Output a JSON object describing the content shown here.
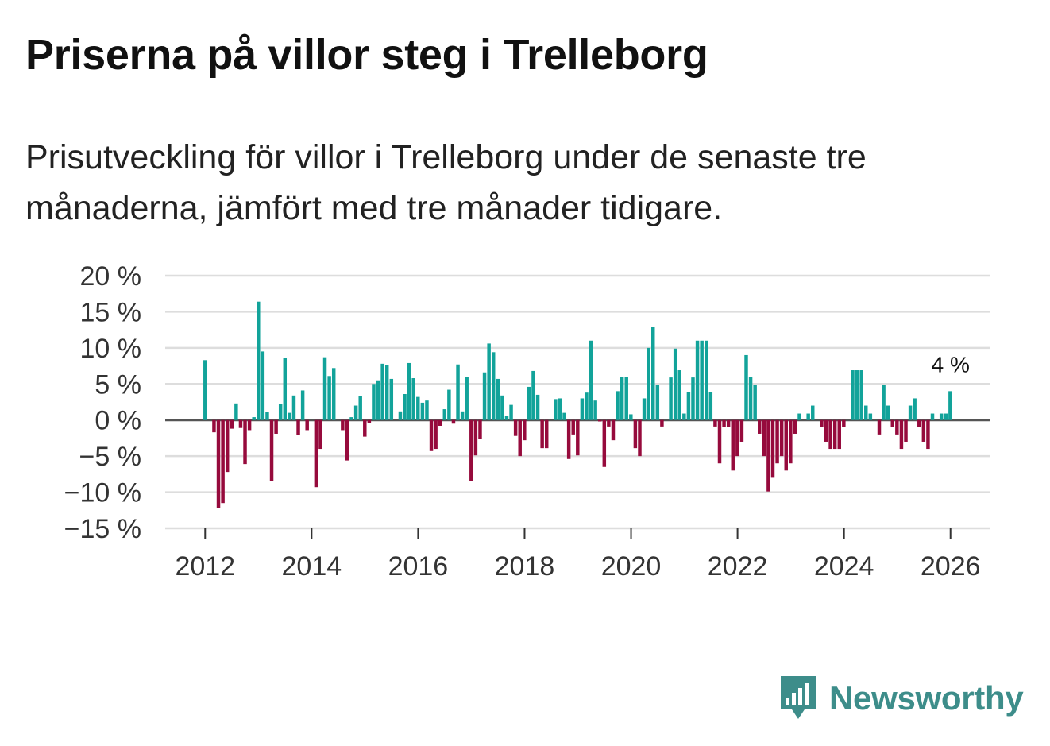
{
  "title": "Priserna på villor steg i Trelleborg",
  "subtitle": "Prisutveckling för villor i Trelleborg under de senaste tre månaderna, jämfört med tre månader tidigare.",
  "brand": {
    "name": "Newsworthy",
    "icon": "newsworthy-logo-icon",
    "color": "#3d8d8a"
  },
  "colors": {
    "positive": "#12a39a",
    "negative": "#960a3c",
    "grid": "#dddddd",
    "zero": "#555555"
  },
  "chart_data": {
    "type": "bar",
    "title": "Priserna på villor steg i Trelleborg",
    "xlabel": "",
    "ylabel": "",
    "ylim": [
      -15,
      20
    ],
    "xlim": [
      2011.25,
      2026.75
    ],
    "yticks": [
      20,
      15,
      10,
      5,
      0,
      -5,
      -10,
      -15
    ],
    "ytick_labels": [
      "20 %",
      "15 %",
      "10 %",
      "5 %",
      "0 %",
      "−5 %",
      "−10 %",
      "−15 %"
    ],
    "xticks": [
      2012,
      2014,
      2016,
      2018,
      2020,
      2022,
      2024,
      2026
    ],
    "xtick_labels": [
      "2012",
      "2014",
      "2016",
      "2018",
      "2020",
      "2022",
      "2024",
      "2026"
    ],
    "annotation": {
      "text": "4 %",
      "x": 2026.0,
      "y": 4
    },
    "x_start": 2012.0,
    "x_step": 0.0833,
    "unit": "%",
    "values": [
      8.3,
      0,
      -1.7,
      -12.2,
      -11.5,
      -7.2,
      -1.2,
      2.3,
      -1.1,
      -6.1,
      -1.4,
      0.4,
      16.4,
      9.5,
      1.1,
      -8.5,
      -1.9,
      2.2,
      8.6,
      1.0,
      3.4,
      -2.1,
      4.1,
      -1.4,
      0,
      -9.3,
      -4.0,
      8.7,
      6.1,
      7.2,
      0,
      -1.4,
      -5.6,
      0.4,
      2.0,
      3.3,
      -2.3,
      -0.4,
      5.0,
      5.5,
      7.8,
      7.6,
      5.7,
      0,
      1.2,
      3.6,
      7.9,
      5.8,
      3.2,
      2.4,
      2.7,
      -4.3,
      -4.0,
      -0.8,
      1.5,
      4.2,
      -0.5,
      7.7,
      1.2,
      6.0,
      -8.5,
      -4.9,
      -2.6,
      6.6,
      10.6,
      9.4,
      5.7,
      3.4,
      0.6,
      2.1,
      -2.2,
      -5.0,
      -2.8,
      4.6,
      6.8,
      3.5,
      -3.9,
      -3.9,
      0,
      2.9,
      3.0,
      1.0,
      -5.4,
      -2.0,
      -4.9,
      3.0,
      3.8,
      11.0,
      2.7,
      -0.2,
      -6.5,
      -0.9,
      -2.8,
      4.0,
      6.0,
      6.0,
      0.8,
      -3.9,
      -5.0,
      3.0,
      10.0,
      12.9,
      4.9,
      -0.9,
      0,
      5.9,
      9.9,
      6.9,
      0.9,
      3.9,
      5.9,
      11.0,
      11.0,
      11.0,
      3.9,
      -0.9,
      -6.0,
      -1.0,
      -1.0,
      -7.0,
      -5.0,
      -3.0,
      9.0,
      6.0,
      4.9,
      -1.9,
      -5.0,
      -9.9,
      -8.0,
      -6.0,
      -5.0,
      -7.0,
      -6.0,
      -1.9,
      0.9,
      0,
      0.9,
      2.0,
      0,
      -1.0,
      -3.0,
      -4.0,
      -4.0,
      -4.0,
      -1.0,
      0,
      6.9,
      6.9,
      6.9,
      2.0,
      0.9,
      0,
      -2.0,
      4.9,
      2.0,
      -1.0,
      -2.0,
      -4.0,
      -3.0,
      2.0,
      3.0,
      -1.0,
      -3.0,
      -4.0,
      0.9,
      0,
      0.9,
      0.9,
      4.0
    ]
  }
}
